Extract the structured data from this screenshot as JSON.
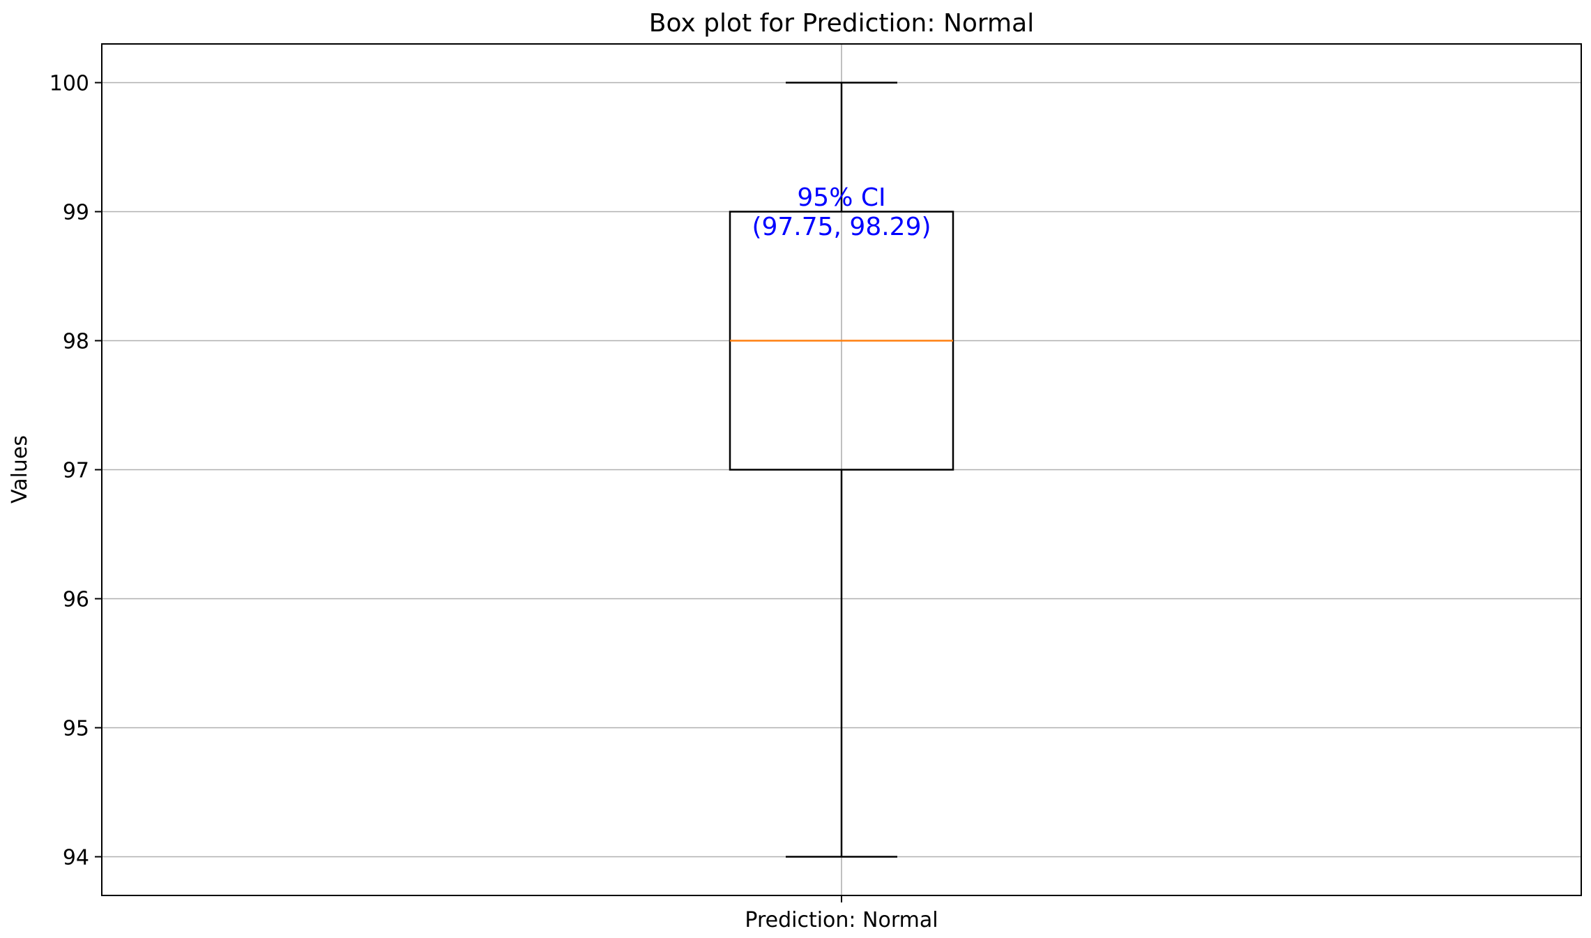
{
  "chart_data": {
    "type": "box",
    "title": "Box plot for Prediction: Normal",
    "xlabel": "",
    "ylabel": "Values",
    "categories": [
      "Prediction: Normal"
    ],
    "ylim": [
      93.7,
      100.3
    ],
    "yticks": [
      94,
      95,
      96,
      97,
      98,
      99,
      100
    ],
    "grid": true,
    "boxes": [
      {
        "category": "Prediction: Normal",
        "whisker_low": 94,
        "q1": 97,
        "median": 98,
        "q3": 99,
        "whisker_high": 100
      }
    ],
    "annotation": {
      "line1": "95% CI",
      "line2": "(97.75, 98.29)",
      "color": "#0000ff"
    },
    "colors": {
      "median": "#ff7f0e",
      "box": "#000000",
      "grid": "#b0b0b0"
    }
  }
}
